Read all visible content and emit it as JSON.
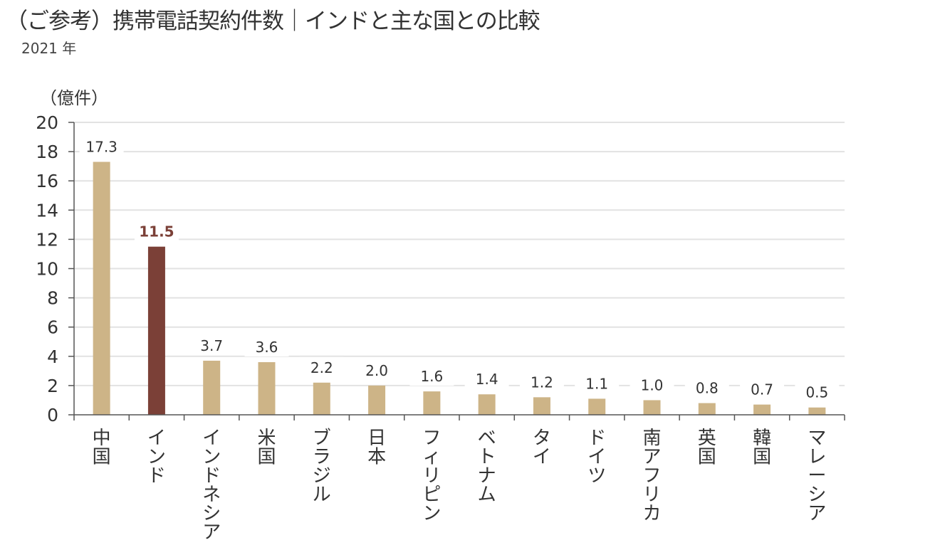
{
  "header": {
    "title": "（ご参考）携帯電話契約件数｜インドと主な国との比較",
    "subtitle": "2021 年",
    "unit_label": "（億件）"
  },
  "colors": {
    "bar_default": "#cdb487",
    "bar_highlight": "#7b4037",
    "label_highlight": "#7b4037",
    "grid": "#e2e2e2",
    "axis": "#555555"
  },
  "chart_data": {
    "type": "bar",
    "categories": [
      "中国",
      "インド",
      "インドネシア",
      "米国",
      "ブラジル",
      "日本",
      "フィリピン",
      "ベトナム",
      "タイ",
      "ドイツ",
      "南アフリカ",
      "英国",
      "韓国",
      "マレーシア"
    ],
    "values": [
      17.3,
      11.5,
      3.7,
      3.6,
      2.2,
      2.0,
      1.6,
      1.4,
      1.2,
      1.1,
      1.0,
      0.8,
      0.7,
      0.5
    ],
    "value_labels": [
      "17.3",
      "11.5",
      "3.7",
      "3.6",
      "2.2",
      "2.0",
      "1.6",
      "1.4",
      "1.2",
      "1.1",
      "1.0",
      "0.8",
      "0.7",
      "0.5"
    ],
    "highlight_category": "インド",
    "ylim": [
      0,
      20
    ],
    "yticks": [
      0,
      2,
      4,
      6,
      8,
      10,
      12,
      14,
      16,
      18,
      20
    ],
    "ylabel": "（億件）",
    "grid": true,
    "legend": "none"
  }
}
